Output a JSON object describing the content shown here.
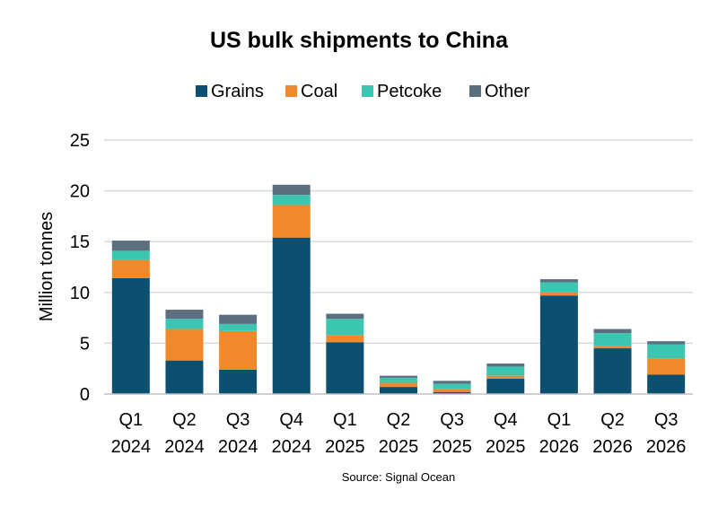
{
  "chart_data": {
    "type": "bar",
    "stacked": true,
    "title": "US bulk shipments to China",
    "ylabel": "Million tonnes",
    "xlabel": "",
    "ylim": [
      0,
      25
    ],
    "yticks": [
      0,
      5,
      10,
      15,
      20,
      25
    ],
    "grid": true,
    "legend_position": "top",
    "categories": [
      [
        "Q1",
        "2024"
      ],
      [
        "Q2",
        "2024"
      ],
      [
        "Q3",
        "2024"
      ],
      [
        "Q4",
        "2024"
      ],
      [
        "Q1",
        "2025"
      ],
      [
        "Q2",
        "2025"
      ],
      [
        "Q3",
        "2025"
      ],
      [
        "Q4",
        "2025"
      ],
      [
        "Q1",
        "2026"
      ],
      [
        "Q2",
        "2026"
      ],
      [
        "Q3",
        "2026"
      ]
    ],
    "series": [
      {
        "name": "Grains",
        "color": "#0b4f71",
        "values": [
          11.4,
          3.3,
          2.4,
          15.4,
          5.1,
          0.7,
          0.2,
          1.5,
          9.7,
          4.5,
          1.9
        ]
      },
      {
        "name": "Coal",
        "color": "#f0892b",
        "values": [
          1.8,
          3.1,
          3.8,
          3.2,
          0.7,
          0.4,
          0.3,
          0.3,
          0.3,
          0.2,
          1.6
        ]
      },
      {
        "name": "Petcoke",
        "color": "#3cc5b0",
        "values": [
          0.9,
          1.0,
          0.7,
          1.0,
          1.6,
          0.5,
          0.5,
          0.9,
          1.0,
          1.3,
          1.4
        ]
      },
      {
        "name": "Other",
        "color": "#5c6f7e",
        "values": [
          1.0,
          0.9,
          0.9,
          1.0,
          0.5,
          0.2,
          0.3,
          0.3,
          0.3,
          0.4,
          0.3
        ]
      }
    ],
    "source": "Source: Signal Ocean"
  }
}
